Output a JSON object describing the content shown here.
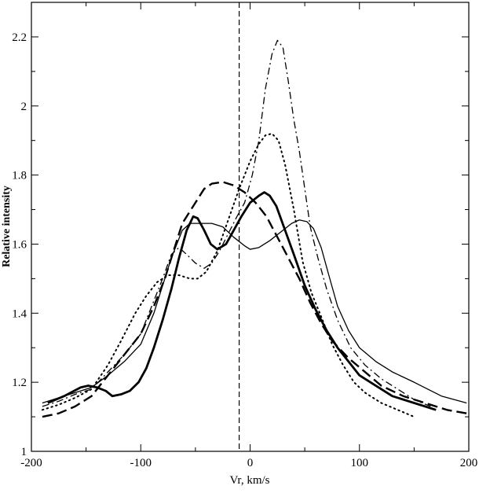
{
  "chart_data": {
    "type": "line",
    "title": "",
    "xlabel": "Vr, km/s",
    "ylabel": "Relative intensity",
    "xlim": [
      -200,
      200
    ],
    "ylim": [
      1,
      2.3
    ],
    "x_ticks": [
      -200,
      -100,
      0,
      100,
      200
    ],
    "x_tick_labels": [
      "-200",
      "-100",
      "0",
      "100",
      "200"
    ],
    "y_ticks": [
      1,
      1.2,
      1.4,
      1.6,
      1.8,
      2,
      2.2
    ],
    "y_tick_labels": [
      "1",
      "1.2",
      "1.4",
      "1.6",
      "1.8",
      "2",
      "2.2"
    ],
    "grid": false,
    "legend": "none",
    "reference_line": {
      "x": -10,
      "style": "dashed",
      "color": "#000000"
    },
    "series": [
      {
        "style": "thick-solid",
        "color": "#000000",
        "points": [
          [
            -185,
            1.14
          ],
          [
            -170,
            1.16
          ],
          [
            -155,
            1.185
          ],
          [
            -148,
            1.19
          ],
          [
            -140,
            1.185
          ],
          [
            -132,
            1.175
          ],
          [
            -126,
            1.16
          ],
          [
            -118,
            1.165
          ],
          [
            -110,
            1.175
          ],
          [
            -102,
            1.2
          ],
          [
            -95,
            1.24
          ],
          [
            -88,
            1.3
          ],
          [
            -80,
            1.38
          ],
          [
            -72,
            1.47
          ],
          [
            -65,
            1.56
          ],
          [
            -58,
            1.64
          ],
          [
            -52,
            1.68
          ],
          [
            -48,
            1.675
          ],
          [
            -42,
            1.64
          ],
          [
            -36,
            1.6
          ],
          [
            -30,
            1.585
          ],
          [
            -22,
            1.6
          ],
          [
            -15,
            1.64
          ],
          [
            -8,
            1.68
          ],
          [
            0,
            1.72
          ],
          [
            8,
            1.74
          ],
          [
            13,
            1.75
          ],
          [
            18,
            1.74
          ],
          [
            24,
            1.71
          ],
          [
            32,
            1.64
          ],
          [
            40,
            1.57
          ],
          [
            50,
            1.48
          ],
          [
            60,
            1.41
          ],
          [
            70,
            1.35
          ],
          [
            80,
            1.3
          ],
          [
            90,
            1.26
          ],
          [
            100,
            1.22
          ],
          [
            115,
            1.19
          ],
          [
            130,
            1.16
          ],
          [
            150,
            1.14
          ],
          [
            170,
            1.12
          ]
        ]
      },
      {
        "style": "thin-solid",
        "color": "#000000",
        "points": [
          [
            -190,
            1.14
          ],
          [
            -175,
            1.155
          ],
          [
            -160,
            1.17
          ],
          [
            -145,
            1.185
          ],
          [
            -130,
            1.22
          ],
          [
            -115,
            1.26
          ],
          [
            -100,
            1.31
          ],
          [
            -88,
            1.4
          ],
          [
            -80,
            1.48
          ],
          [
            -72,
            1.56
          ],
          [
            -62,
            1.64
          ],
          [
            -55,
            1.66
          ],
          [
            -45,
            1.66
          ],
          [
            -35,
            1.66
          ],
          [
            -25,
            1.65
          ],
          [
            -15,
            1.62
          ],
          [
            -5,
            1.595
          ],
          [
            0,
            1.585
          ],
          [
            8,
            1.59
          ],
          [
            18,
            1.61
          ],
          [
            28,
            1.635
          ],
          [
            38,
            1.66
          ],
          [
            45,
            1.67
          ],
          [
            52,
            1.665
          ],
          [
            58,
            1.645
          ],
          [
            65,
            1.59
          ],
          [
            72,
            1.51
          ],
          [
            80,
            1.42
          ],
          [
            90,
            1.35
          ],
          [
            100,
            1.3
          ],
          [
            115,
            1.26
          ],
          [
            130,
            1.23
          ],
          [
            150,
            1.2
          ],
          [
            175,
            1.16
          ],
          [
            198,
            1.14
          ]
        ]
      },
      {
        "style": "dashed",
        "color": "#000000",
        "points": [
          [
            -190,
            1.1
          ],
          [
            -175,
            1.11
          ],
          [
            -160,
            1.13
          ],
          [
            -145,
            1.16
          ],
          [
            -130,
            1.22
          ],
          [
            -115,
            1.28
          ],
          [
            -100,
            1.34
          ],
          [
            -88,
            1.42
          ],
          [
            -78,
            1.5
          ],
          [
            -70,
            1.58
          ],
          [
            -62,
            1.66
          ],
          [
            -52,
            1.71
          ],
          [
            -42,
            1.76
          ],
          [
            -35,
            1.775
          ],
          [
            -25,
            1.78
          ],
          [
            -15,
            1.77
          ],
          [
            -5,
            1.75
          ],
          [
            5,
            1.72
          ],
          [
            15,
            1.68
          ],
          [
            25,
            1.62
          ],
          [
            35,
            1.56
          ],
          [
            45,
            1.5
          ],
          [
            55,
            1.43
          ],
          [
            65,
            1.37
          ],
          [
            75,
            1.32
          ],
          [
            90,
            1.27
          ],
          [
            105,
            1.23
          ],
          [
            120,
            1.19
          ],
          [
            140,
            1.16
          ],
          [
            160,
            1.14
          ],
          [
            180,
            1.12
          ],
          [
            198,
            1.11
          ]
        ]
      },
      {
        "style": "dotted",
        "color": "#000000",
        "points": [
          [
            -190,
            1.12
          ],
          [
            -175,
            1.135
          ],
          [
            -160,
            1.155
          ],
          [
            -145,
            1.18
          ],
          [
            -130,
            1.25
          ],
          [
            -118,
            1.32
          ],
          [
            -105,
            1.4
          ],
          [
            -95,
            1.45
          ],
          [
            -85,
            1.49
          ],
          [
            -75,
            1.51
          ],
          [
            -65,
            1.51
          ],
          [
            -55,
            1.5
          ],
          [
            -48,
            1.5
          ],
          [
            -40,
            1.52
          ],
          [
            -30,
            1.58
          ],
          [
            -20,
            1.67
          ],
          [
            -10,
            1.76
          ],
          [
            0,
            1.84
          ],
          [
            8,
            1.89
          ],
          [
            14,
            1.915
          ],
          [
            20,
            1.92
          ],
          [
            26,
            1.9
          ],
          [
            32,
            1.83
          ],
          [
            40,
            1.7
          ],
          [
            48,
            1.55
          ],
          [
            56,
            1.46
          ],
          [
            65,
            1.39
          ],
          [
            75,
            1.31
          ],
          [
            85,
            1.25
          ],
          [
            95,
            1.2
          ],
          [
            105,
            1.17
          ],
          [
            120,
            1.14
          ],
          [
            135,
            1.12
          ],
          [
            150,
            1.1
          ]
        ]
      },
      {
        "style": "dash-dot",
        "color": "#000000",
        "points": [
          [
            -190,
            1.13
          ],
          [
            -175,
            1.145
          ],
          [
            -160,
            1.165
          ],
          [
            -145,
            1.18
          ],
          [
            -130,
            1.23
          ],
          [
            -115,
            1.28
          ],
          [
            -100,
            1.34
          ],
          [
            -90,
            1.42
          ],
          [
            -80,
            1.5
          ],
          [
            -72,
            1.57
          ],
          [
            -65,
            1.59
          ],
          [
            -58,
            1.57
          ],
          [
            -50,
            1.545
          ],
          [
            -42,
            1.53
          ],
          [
            -35,
            1.545
          ],
          [
            -28,
            1.58
          ],
          [
            -20,
            1.63
          ],
          [
            -12,
            1.68
          ],
          [
            -5,
            1.72
          ],
          [
            2,
            1.8
          ],
          [
            8,
            1.9
          ],
          [
            14,
            2.05
          ],
          [
            20,
            2.15
          ],
          [
            25,
            2.19
          ],
          [
            30,
            2.17
          ],
          [
            35,
            2.07
          ],
          [
            40,
            1.96
          ],
          [
            45,
            1.87
          ],
          [
            50,
            1.76
          ],
          [
            55,
            1.65
          ],
          [
            62,
            1.56
          ],
          [
            70,
            1.47
          ],
          [
            80,
            1.38
          ],
          [
            92,
            1.3
          ],
          [
            105,
            1.25
          ],
          [
            120,
            1.21
          ],
          [
            135,
            1.18
          ],
          [
            150,
            1.15
          ],
          [
            165,
            1.13
          ]
        ]
      }
    ]
  }
}
